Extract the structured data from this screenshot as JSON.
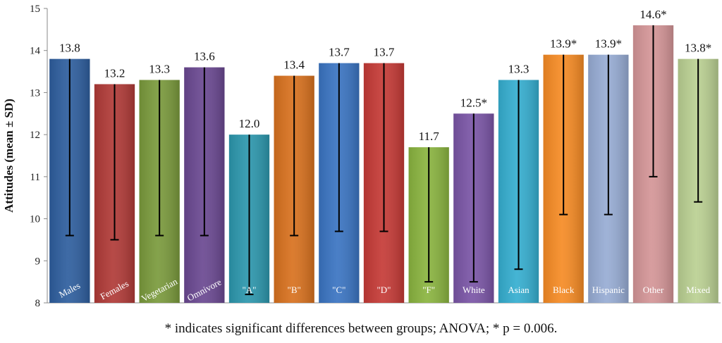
{
  "chart_data": {
    "type": "bar",
    "ylabel": "Attitudes (mean ± SD)",
    "ylim": [
      8,
      15
    ],
    "yticks": [
      8,
      9,
      10,
      11,
      12,
      13,
      14,
      15
    ],
    "categories": [
      "Males",
      "Females",
      "Vegetarian",
      "Omnivore",
      "\"A\"",
      "\"B\"",
      "\"C\"",
      "\"D\"",
      "\"F\"",
      "White",
      "Asian",
      "Black",
      "Hispanic",
      "Other",
      "Mixed"
    ],
    "values": [
      13.8,
      13.2,
      13.3,
      13.6,
      12.0,
      13.4,
      13.7,
      13.7,
      11.7,
      12.5,
      13.3,
      13.9,
      13.9,
      14.6,
      13.8
    ],
    "value_labels": [
      "13.8",
      "13.2",
      "13.3",
      "13.6",
      "12.0",
      "13.4",
      "13.7",
      "13.7",
      "11.7",
      "12.5*",
      "13.3",
      "13.9*",
      "13.9*",
      "14.6*",
      "13.8*"
    ],
    "error_lower": [
      9.6,
      9.5,
      9.6,
      9.6,
      8.2,
      9.6,
      9.7,
      9.7,
      8.5,
      8.5,
      8.8,
      10.1,
      10.1,
      11.0,
      10.4
    ],
    "colors": [
      "#2e5e9e",
      "#b03a37",
      "#7a9a3c",
      "#6a4891",
      "#2c97ad",
      "#d8711e",
      "#3a74c2",
      "#c53a36",
      "#8ab43f",
      "#7a55a6",
      "#35aed0",
      "#f68b24",
      "#97acd4",
      "#d49597",
      "#bad092"
    ],
    "footnote": "* indicates significant differences between groups; ANOVA; * p = 0.006."
  }
}
